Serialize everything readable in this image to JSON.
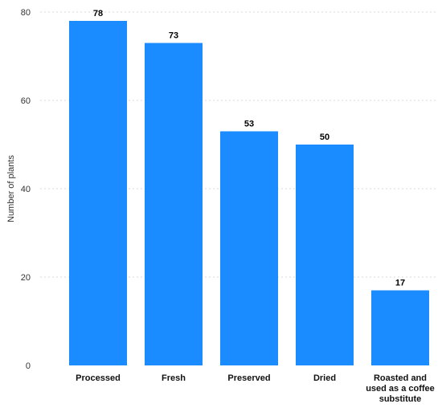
{
  "chart_data": {
    "type": "bar",
    "categories": [
      [
        "Processed"
      ],
      [
        "Fresh"
      ],
      [
        "Preserved"
      ],
      [
        "Dried"
      ],
      [
        "Roasted and",
        "used as a coffee",
        "substitute"
      ]
    ],
    "values": [
      78,
      73,
      53,
      50,
      17
    ],
    "ylabel": "Number of plants",
    "xlabel": "",
    "ylim": [
      0,
      80
    ],
    "yticks": [
      0,
      20,
      40,
      60,
      80
    ],
    "grid": true,
    "bar_color": "#1a8cff"
  }
}
